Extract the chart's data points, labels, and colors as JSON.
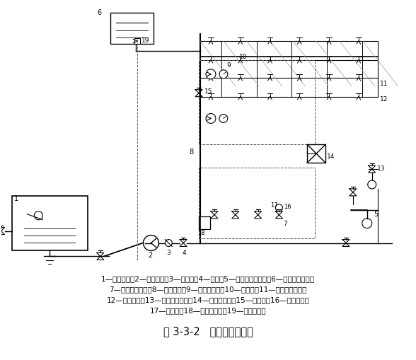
{
  "title": "图 3-3-2   湿式系统示意图",
  "legend_line1": "1—消防水池；2—消防水泵；3—止回阀；4—闸阀；5—消防水泵接合器；6—高位消防水箱；",
  "legend_line2": "7—湿式报警阀组；8—配水干管；9—水流指示器；10—配水管；11—闭式洒水喷头；",
  "legend_line3": "12—配水支管；13—末端试水装置；14—报警控制器；15—泄水阀；16—压力开关；",
  "legend_line4": "17—信号阀；18—水泵控制柜；19—流量开关。",
  "bg_color": "#ffffff",
  "line_color": "#000000",
  "label_fontsize": 7.5,
  "title_fontsize": 10.5
}
